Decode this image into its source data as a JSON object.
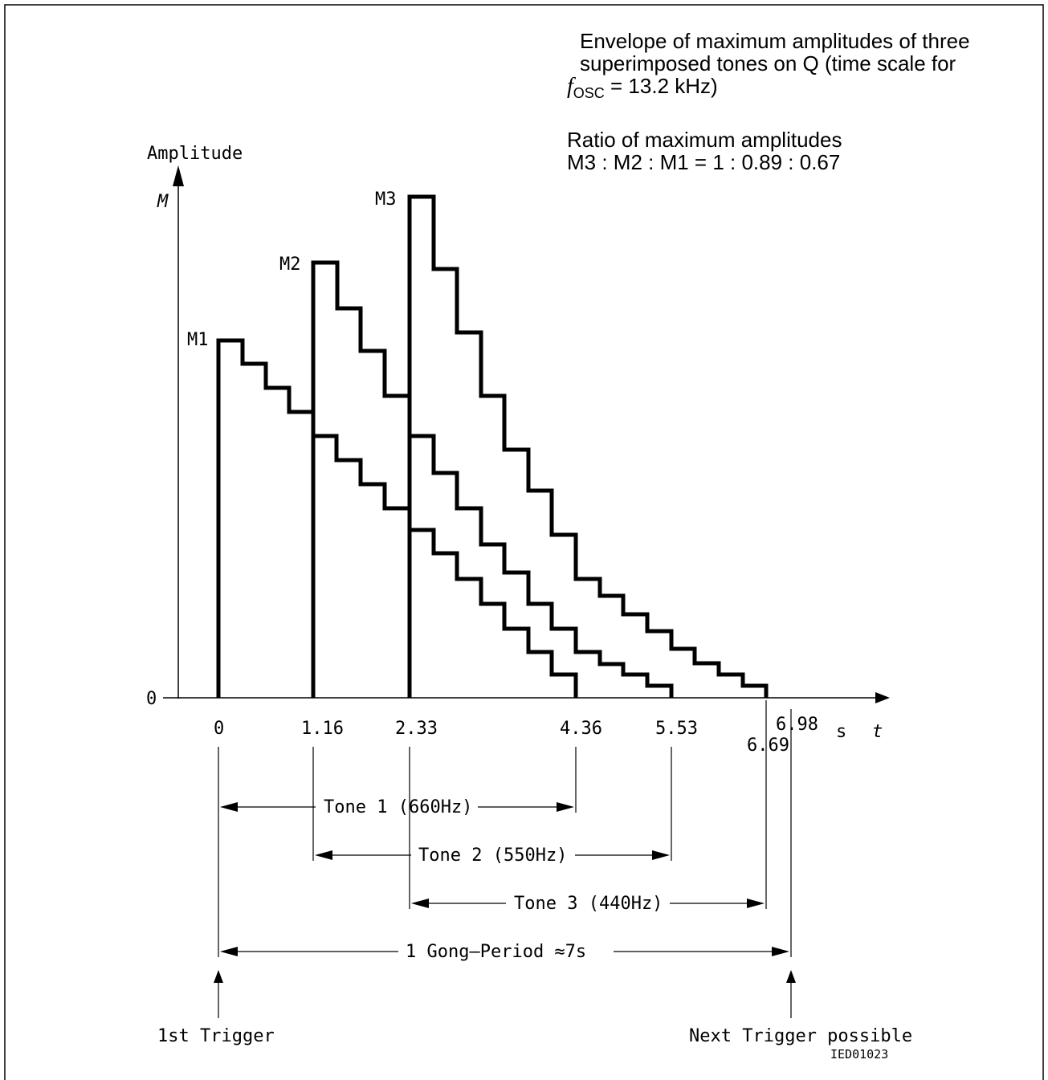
{
  "description": {
    "line1": "Envelope of maximum amplitudes of three",
    "line2": "superimposed tones on Q (time scale for",
    "fosc_symbol": "f",
    "fosc_subscript": "OSC",
    "fosc_value": " = 13.2 kHz)",
    "ratio_line1": "Ratio of maximum amplitudes",
    "ratio_line2": "M3 : M2 : M1 = 1 : 0.89 : 0.67"
  },
  "axes": {
    "y_title": "Amplitude",
    "y_symbol": "M",
    "y_zero": "0",
    "x_unit": "s",
    "x_symbol": "t"
  },
  "tick_labels": [
    "0",
    "1.16",
    "2.33",
    "4.36",
    "5.53",
    "6.69",
    "6.98"
  ],
  "peak_labels": [
    "M1",
    "M2",
    "M3"
  ],
  "tones": [
    {
      "label": "Tone 1 (660Hz)",
      "start": 0,
      "end": 4.36,
      "peak_label": "M1",
      "peak_relative": 0.67
    },
    {
      "label": "Tone 2 (550Hz)",
      "start": 1.16,
      "end": 5.53,
      "peak_label": "M2",
      "peak_relative": 0.89
    },
    {
      "label": "Tone 3 (440Hz)",
      "start": 2.33,
      "end": 6.69,
      "peak_label": "M3",
      "peak_relative": 1
    }
  ],
  "gong_period": {
    "label": "1 Gong–Period ≈7s",
    "start": 0,
    "end": 6.98
  },
  "triggers": {
    "first": "1st Trigger",
    "next": "Next Trigger possible"
  },
  "code": "IED01023"
}
